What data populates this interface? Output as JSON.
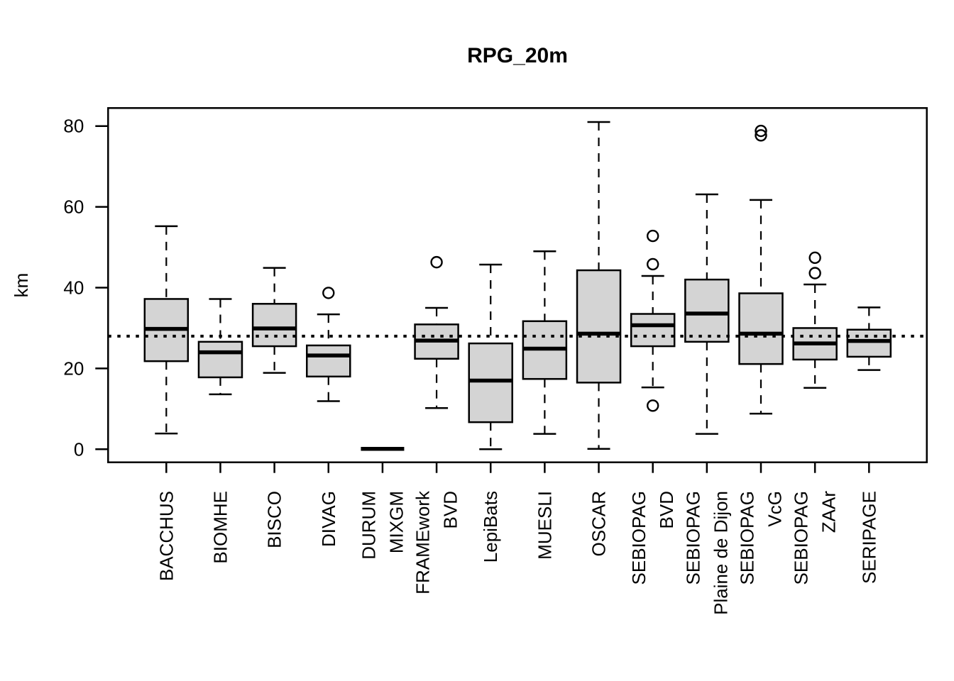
{
  "chart_data": {
    "type": "boxplot",
    "title": "RPG_20m",
    "ylabel": "km",
    "xlabel": "",
    "unit": "km",
    "yticks": [
      0,
      20,
      40,
      60,
      80
    ],
    "ylim": [
      -3.2,
      84.5
    ],
    "grid": false,
    "reference_line": {
      "value": 28,
      "style": "dotted",
      "color": "#000000"
    },
    "box_fill_color": "#d4d4d4",
    "box_stroke_color": "#000000",
    "categories": [
      "BACCHUS",
      "BIOMHE",
      "BISCO",
      "DIVAG",
      "DURUM MIXGM",
      "FRAMEwork BVD",
      "LepiBats",
      "MUESLI",
      "OSCAR",
      "SEBIOPAG BVD",
      "SEBIOPAG Plaine de Dijon",
      "SEBIOPAG VcG",
      "SEBIOPAG ZAAr",
      "SERIPAGE"
    ],
    "boxes": [
      {
        "label_lines": [
          "BACCHUS"
        ],
        "whisker_low": 3.9,
        "q1": 21.8,
        "median": 29.8,
        "q3": 37.2,
        "whisker_high": 55.2,
        "outliers": []
      },
      {
        "label_lines": [
          "BIOMHE"
        ],
        "whisker_low": 13.6,
        "q1": 17.8,
        "median": 24.0,
        "q3": 26.6,
        "whisker_high": 37.2,
        "outliers": []
      },
      {
        "label_lines": [
          "BISCO"
        ],
        "whisker_low": 18.9,
        "q1": 25.5,
        "median": 29.9,
        "q3": 36.0,
        "whisker_high": 44.9,
        "outliers": []
      },
      {
        "label_lines": [
          "DIVAG"
        ],
        "whisker_low": 11.9,
        "q1": 18.0,
        "median": 23.2,
        "q3": 25.7,
        "whisker_high": 33.4,
        "outliers": [
          38.7
        ]
      },
      {
        "label_lines": [
          "DURUM",
          "MIXGM"
        ],
        "whisker_low": 0.1,
        "q1": 0.1,
        "median": 0.1,
        "q3": 0.1,
        "whisker_high": 0.1,
        "outliers": []
      },
      {
        "label_lines": [
          "FRAMEwork",
          "BVD"
        ],
        "whisker_low": 10.2,
        "q1": 22.4,
        "median": 26.9,
        "q3": 30.9,
        "whisker_high": 35.0,
        "outliers": [
          46.3
        ]
      },
      {
        "label_lines": [
          "LepiBats"
        ],
        "whisker_low": 0.0,
        "q1": 6.7,
        "median": 17.0,
        "q3": 26.2,
        "whisker_high": 45.7,
        "outliers": []
      },
      {
        "label_lines": [
          "MUESLI"
        ],
        "whisker_low": 3.8,
        "q1": 17.4,
        "median": 24.9,
        "q3": 31.7,
        "whisker_high": 49.0,
        "outliers": []
      },
      {
        "label_lines": [
          "OSCAR"
        ],
        "whisker_low": 0.1,
        "q1": 16.5,
        "median": 28.6,
        "q3": 44.3,
        "whisker_high": 81.0,
        "outliers": []
      },
      {
        "label_lines": [
          "SEBIOPAG",
          "BVD"
        ],
        "whisker_low": 15.3,
        "q1": 25.5,
        "median": 30.7,
        "q3": 33.5,
        "whisker_high": 42.9,
        "outliers": [
          52.8,
          45.8,
          10.8
        ]
      },
      {
        "label_lines": [
          "SEBIOPAG",
          "Plaine de Dijon"
        ],
        "whisker_low": 3.8,
        "q1": 26.6,
        "median": 33.6,
        "q3": 42.0,
        "whisker_high": 63.1,
        "outliers": []
      },
      {
        "label_lines": [
          "SEBIOPAG",
          "VcG"
        ],
        "whisker_low": 8.8,
        "q1": 21.1,
        "median": 28.6,
        "q3": 38.6,
        "whisker_high": 61.7,
        "outliers": [
          78.8,
          77.7
        ]
      },
      {
        "label_lines": [
          "SEBIOPAG",
          "ZAAr"
        ],
        "whisker_low": 15.2,
        "q1": 22.2,
        "median": 26.2,
        "q3": 30.0,
        "whisker_high": 40.8,
        "outliers": [
          47.4,
          43.6
        ]
      },
      {
        "label_lines": [
          "SERIPAGE"
        ],
        "whisker_low": 19.6,
        "q1": 22.9,
        "median": 26.8,
        "q3": 29.6,
        "whisker_high": 35.1,
        "outliers": []
      }
    ]
  }
}
